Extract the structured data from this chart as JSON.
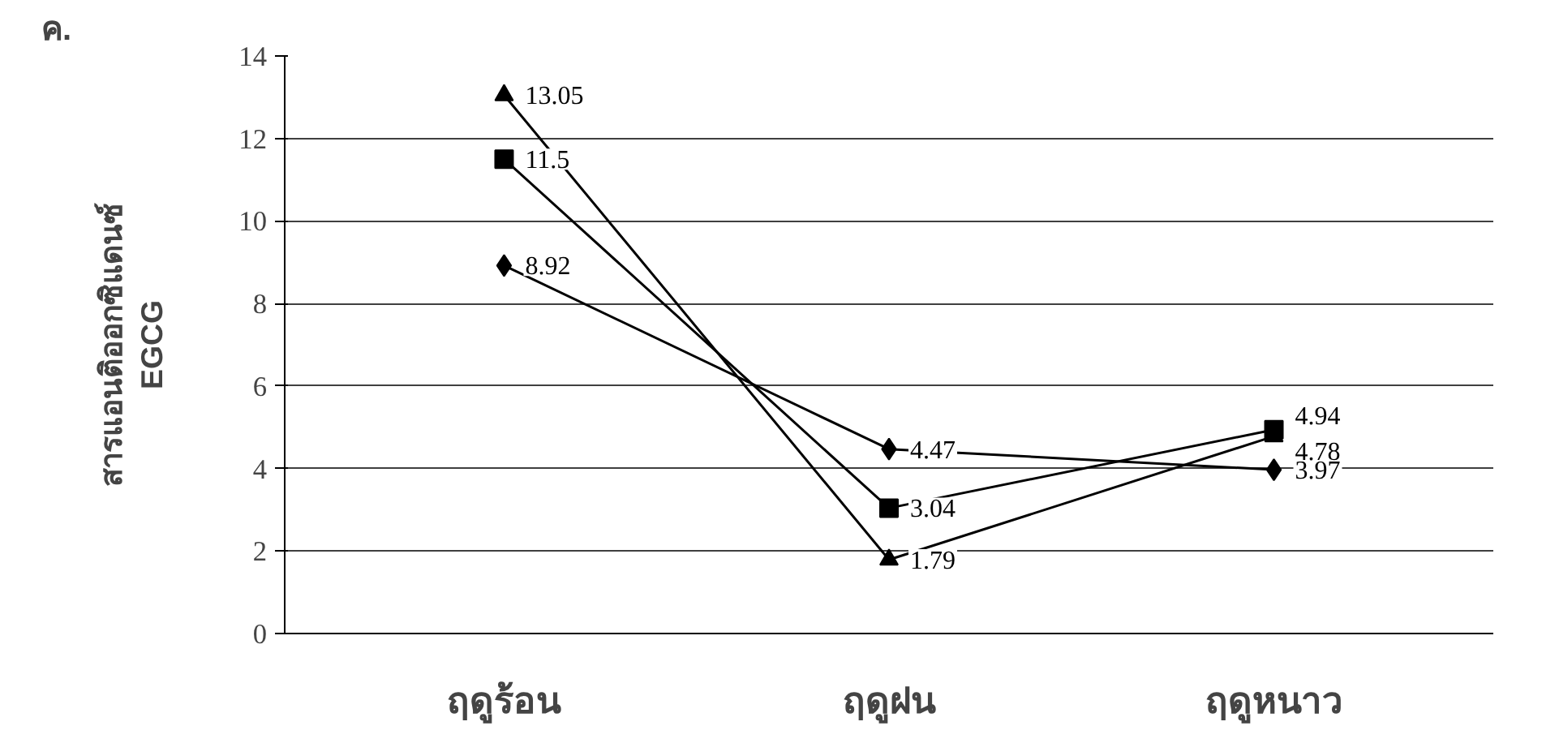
{
  "chart_data": {
    "type": "line",
    "title": "ค.",
    "ylabel": "สารแอนติออกซิแดนซ์\nEGCG",
    "categories": [
      "ฤดูร้อน",
      "ฤดูฝน",
      "ฤดูหนาว"
    ],
    "series": [
      {
        "color": "#000000",
        "marker": "diamond",
        "values": [
          8.92,
          4.47,
          3.97
        ]
      },
      {
        "color": "#000000",
        "marker": "square",
        "values": [
          11.5,
          3.04,
          4.94
        ]
      },
      {
        "color": "#000000",
        "marker": "triangle",
        "values": [
          13.05,
          1.79,
          4.78
        ]
      }
    ],
    "ylim": [
      0,
      14
    ],
    "yticks": [
      0,
      2,
      4,
      6,
      8,
      10,
      12,
      14
    ],
    "grid": "y",
    "data_labels": true,
    "line_style": "solid"
  }
}
